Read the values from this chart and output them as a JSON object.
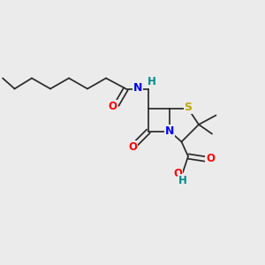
{
  "background_color": "#ebebeb",
  "bond_color": "#2a2a2a",
  "atom_colors": {
    "O": "#ff0000",
    "N": "#0000ee",
    "S": "#bbaa00",
    "H_on_N": "#008b8b",
    "H_on_O": "#008b8b",
    "C": "#2a2a2a"
  },
  "figsize": [
    3.0,
    3.0
  ],
  "dpi": 100,
  "fs": 8.5,
  "lw": 1.25,
  "bg": "#ebebeb"
}
